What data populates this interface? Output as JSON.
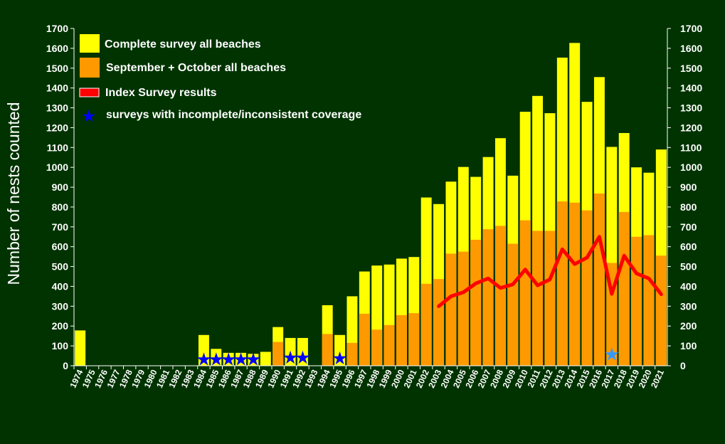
{
  "colors": {
    "background": "#003300",
    "complete": "#ffff00",
    "sep_oct": "#ff9900",
    "index": "#ff0000",
    "star_incomplete": "#0000ff",
    "star_2017": "#3399ff",
    "axis": "#ffffff"
  },
  "chart_data": {
    "type": "bar",
    "ylabel": "Number of nests counted",
    "xlabel": "",
    "ylim": [
      0,
      1700
    ],
    "yticks": [
      0,
      100,
      200,
      300,
      400,
      500,
      600,
      700,
      800,
      900,
      1000,
      1100,
      1200,
      1300,
      1400,
      1500,
      1600,
      1700
    ],
    "secondary_y_axis": true,
    "categories": [
      "1974",
      "1975",
      "1976",
      "1977",
      "1978",
      "1979",
      "1980",
      "1981",
      "1982",
      "1983",
      "1984",
      "1985",
      "1986",
      "1987",
      "1988",
      "1989",
      "1990",
      "1991",
      "1992",
      "1993",
      "1994",
      "1995",
      "1996",
      "1997",
      "1998",
      "1999",
      "2000",
      "2001",
      "2002",
      "2003",
      "2004",
      "2005",
      "2006",
      "2007",
      "2008",
      "2009",
      "2010",
      "2011",
      "2012",
      "2013",
      "2014",
      "2015",
      "2016",
      "2017",
      "2018",
      "2019",
      "2020",
      "2021"
    ],
    "legend_position": "top-left",
    "series": [
      {
        "name": "Complete survey all beaches",
        "kind": "bar",
        "values": [
          178,
          0,
          0,
          0,
          0,
          0,
          0,
          0,
          0,
          0,
          155,
          85,
          65,
          65,
          60,
          70,
          195,
          140,
          140,
          0,
          305,
          155,
          350,
          475,
          505,
          510,
          540,
          548,
          848,
          815,
          928,
          1002,
          952,
          1052,
          1147,
          958,
          1280,
          1360,
          1273,
          1553,
          1627,
          1330,
          1455,
          1103,
          1173,
          1000,
          973,
          1090
        ]
      },
      {
        "name": "September + October all beaches",
        "kind": "bar",
        "values": [
          null,
          null,
          null,
          null,
          null,
          null,
          null,
          null,
          null,
          null,
          null,
          null,
          null,
          null,
          null,
          null,
          120,
          null,
          null,
          null,
          160,
          null,
          115,
          262,
          182,
          205,
          255,
          265,
          413,
          437,
          565,
          575,
          635,
          688,
          705,
          615,
          733,
          680,
          680,
          828,
          822,
          783,
          868,
          518,
          775,
          650,
          658,
          555
        ]
      },
      {
        "name": "Index Survey results",
        "kind": "line",
        "values": [
          null,
          null,
          null,
          null,
          null,
          null,
          null,
          null,
          null,
          null,
          null,
          null,
          null,
          null,
          null,
          null,
          null,
          null,
          null,
          null,
          null,
          null,
          null,
          null,
          null,
          null,
          null,
          null,
          null,
          300,
          350,
          370,
          415,
          440,
          392,
          410,
          485,
          405,
          435,
          587,
          512,
          545,
          650,
          362,
          555,
          465,
          440,
          360
        ]
      },
      {
        "name": "surveys with incomplete/inconsistent coverage",
        "kind": "marker",
        "points": [
          {
            "x": "1984",
            "y": 30
          },
          {
            "x": "1985",
            "y": 30
          },
          {
            "x": "1986",
            "y": 30
          },
          {
            "x": "1987",
            "y": 30
          },
          {
            "x": "1988",
            "y": 30
          },
          {
            "x": "1991",
            "y": 40
          },
          {
            "x": "1992",
            "y": 40
          },
          {
            "x": "1995",
            "y": 35
          },
          {
            "x": "2017",
            "y": 55
          }
        ]
      }
    ]
  }
}
